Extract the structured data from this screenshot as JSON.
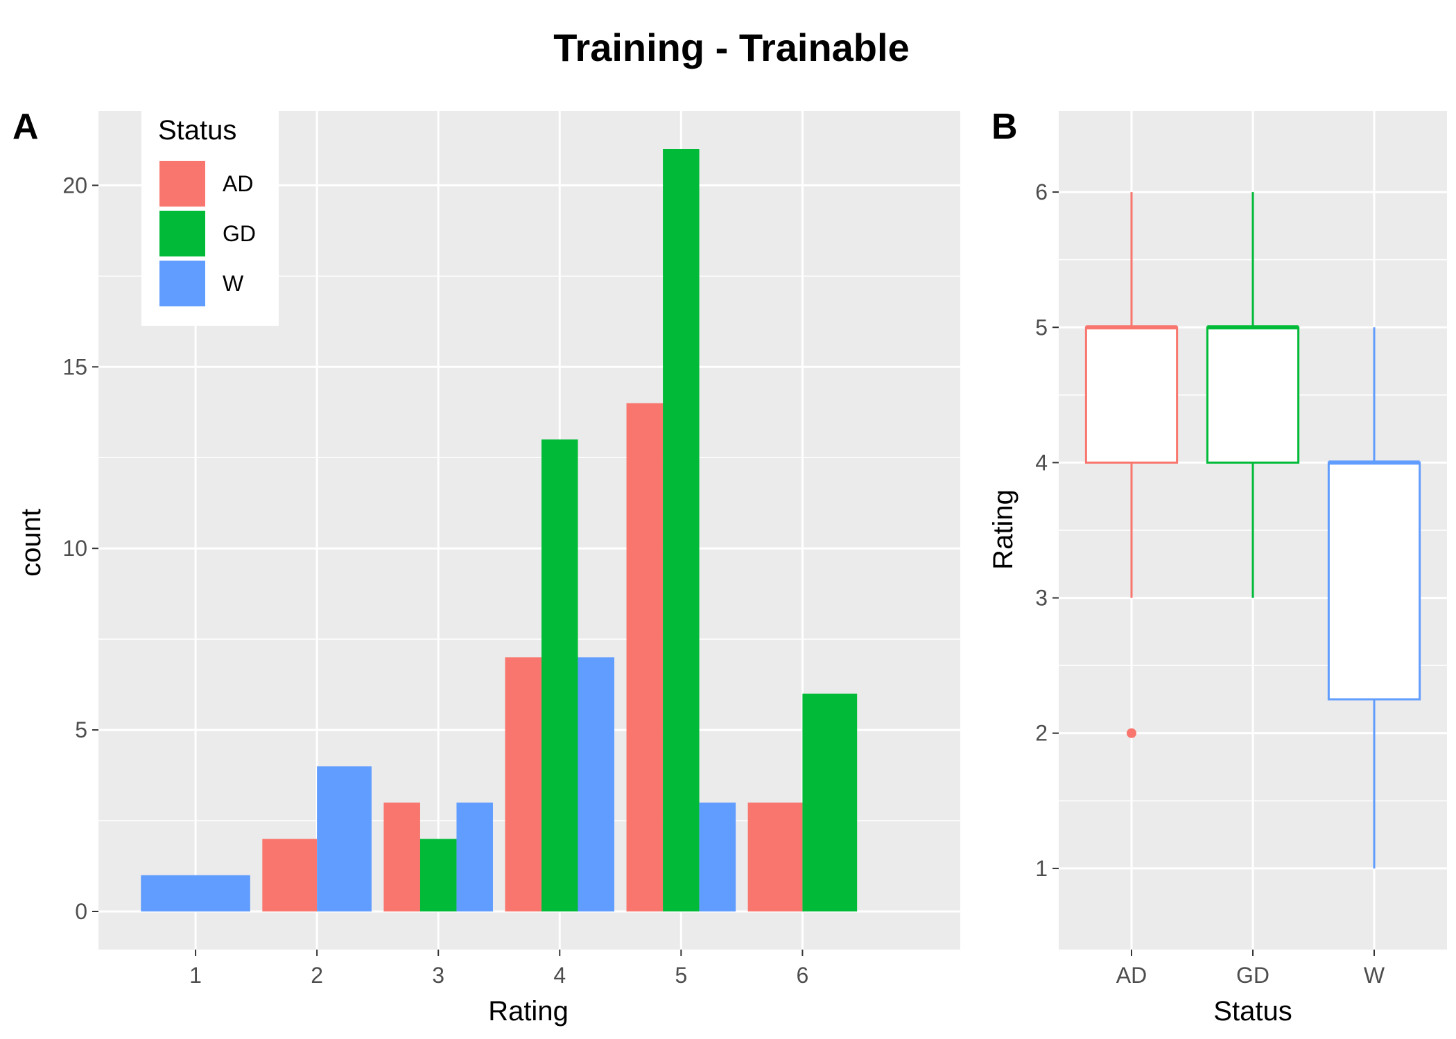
{
  "figure": {
    "title": "Training - Trainable"
  },
  "colors": {
    "panel_bg": "#ebebeb",
    "grid": "#ffffff",
    "tick_text": "#4d4d4d",
    "AD": "#F8766D",
    "GD": "#00BA38",
    "W": "#619CFF"
  },
  "chart_data": [
    {
      "panel_tag": "A",
      "type": "bar",
      "xlabel": "Rating",
      "ylabel": "count",
      "categories": [
        "1",
        "2",
        "3",
        "4",
        "5",
        "6"
      ],
      "xlim": [
        0.2,
        7.3
      ],
      "ylim": [
        -1.05,
        22.05
      ],
      "y_ticks": [
        0,
        5,
        10,
        15,
        20
      ],
      "grid": true,
      "legend": {
        "title": "Status",
        "placement": "top-left inside",
        "entries": [
          "AD",
          "GD",
          "W"
        ]
      },
      "series": [
        {
          "name": "AD",
          "values": [
            0,
            2,
            3,
            7,
            14,
            3
          ]
        },
        {
          "name": "GD",
          "values": [
            0,
            0,
            2,
            13,
            21,
            6
          ]
        },
        {
          "name": "W",
          "values": [
            1,
            4,
            3,
            7,
            3,
            0
          ]
        }
      ]
    },
    {
      "panel_tag": "B",
      "type": "box",
      "xlabel": "Status",
      "ylabel": "Rating",
      "categories": [
        "AD",
        "GD",
        "W"
      ],
      "ylim": [
        0.4,
        6.6
      ],
      "y_ticks": [
        1,
        2,
        3,
        4,
        5,
        6
      ],
      "grid": true,
      "boxes": [
        {
          "name": "AD",
          "lower_whisker": 3,
          "q1": 4,
          "median": 5,
          "q3": 5,
          "upper_whisker": 6,
          "outliers": [
            2
          ]
        },
        {
          "name": "GD",
          "lower_whisker": 3,
          "q1": 4,
          "median": 5,
          "q3": 5,
          "upper_whisker": 6,
          "outliers": []
        },
        {
          "name": "W",
          "lower_whisker": 1,
          "q1": 2.25,
          "median": 4,
          "q3": 4,
          "upper_whisker": 5,
          "outliers": []
        }
      ]
    }
  ]
}
